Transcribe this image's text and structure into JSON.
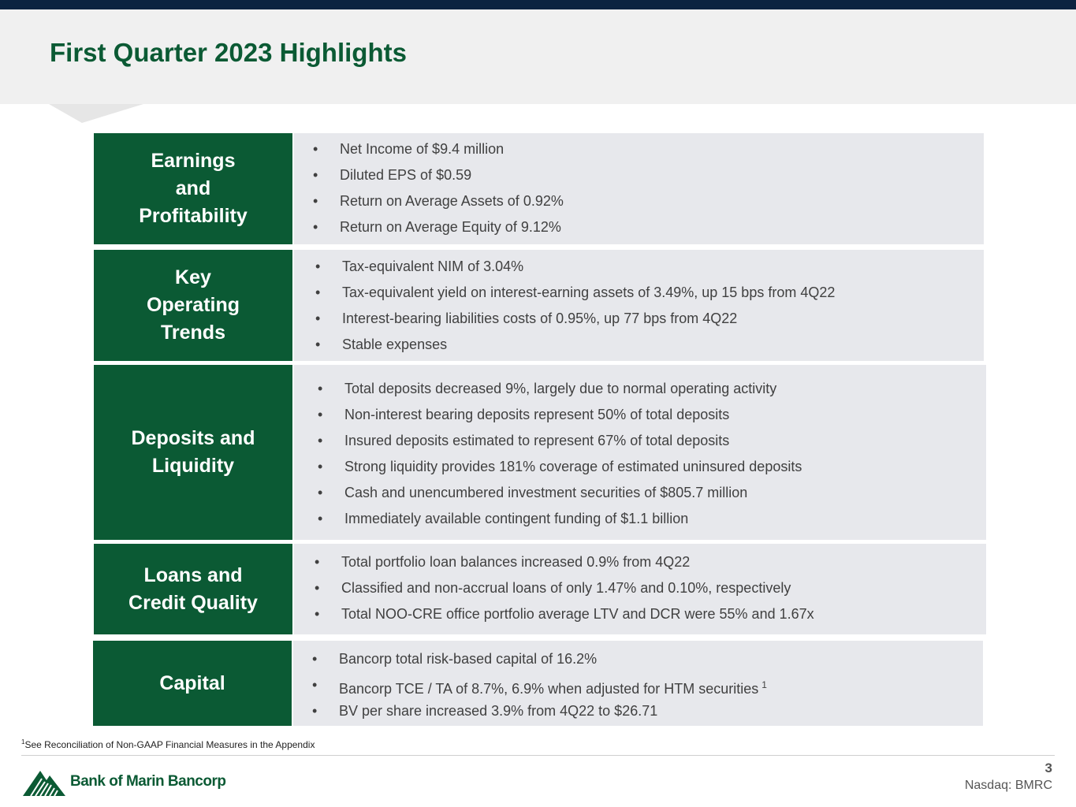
{
  "title": "First Quarter 2023 Highlights",
  "bullet_char": "•",
  "sections": [
    {
      "label": "Earnings\nand\nProfitability",
      "bullets": [
        {
          "text": "Net Income of $9.4 million"
        },
        {
          "text": "Diluted EPS of $0.59"
        },
        {
          "text": "Return on Average Assets of 0.92%"
        },
        {
          "text": "Return on Average Equity of 9.12%"
        }
      ]
    },
    {
      "label": "Key\nOperating\nTrends",
      "bullets": [
        {
          "text": "Tax-equivalent NIM of 3.04%"
        },
        {
          "text": "Tax-equivalent yield on interest-earning assets of 3.49%, up 15 bps from 4Q22"
        },
        {
          "text": "Interest-bearing liabilities costs of 0.95%, up 77 bps from 4Q22"
        },
        {
          "text": "Stable expenses"
        }
      ]
    },
    {
      "label": "Deposits and\nLiquidity",
      "bullets": [
        {
          "text": "Total deposits decreased 9%, largely due to normal operating activity"
        },
        {
          "text": "Non-interest bearing deposits represent 50% of total deposits"
        },
        {
          "text": "Insured deposits estimated to represent 67% of total deposits"
        },
        {
          "text": "Strong liquidity provides 181% coverage of estimated uninsured deposits"
        },
        {
          "text": "Cash and unencumbered investment securities of $805.7 million"
        },
        {
          "text": "Immediately available contingent funding of $1.1 billion"
        }
      ]
    },
    {
      "label": "Loans and\nCredit Quality",
      "bullets": [
        {
          "text": "Total portfolio loan balances increased 0.9% from 4Q22"
        },
        {
          "text": "Classified and non-accrual loans of only 1.47% and 0.10%, respectively"
        },
        {
          "text": "Total NOO-CRE office portfolio average LTV and DCR were 55% and 1.67x"
        }
      ]
    },
    {
      "label": "Capital",
      "bullets": [
        {
          "text": "Bancorp total risk-based capital of 16.2%"
        },
        {
          "text": "Bancorp TCE / TA of 8.7%, 6.9% when adjusted for HTM securities",
          "sup": "1"
        },
        {
          "text": "BV per share increased 3.9% from 4Q22 to $26.71"
        }
      ]
    }
  ],
  "footnote": {
    "marker": "1",
    "text": "See Reconciliation of Non-GAAP Financial Measures in the Appendix"
  },
  "footer": {
    "logo_text": "Bank of Marin Bancorp",
    "logo_icon": "mountain-trees-logo-icon",
    "page_number": "3",
    "ticker": "Nasdaq: BMRC"
  },
  "colors": {
    "brand_green": "#0b5a34",
    "top_bar": "#0c2340",
    "panel_gray": "#e7e8ec",
    "header_gray": "#f0f0f0"
  }
}
